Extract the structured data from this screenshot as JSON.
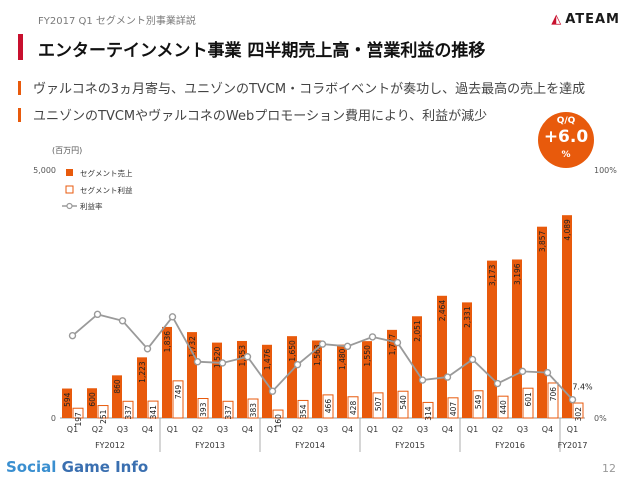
{
  "header": {
    "section": "FY2017 Q1 セグメント別事業詳説",
    "title": "エンターテインメント事業 四半期売上高・営業利益の推移",
    "logo": "ATEAM"
  },
  "bullets": [
    "ヴァルコネの3ヵ月寄与、ユニゾンのTVCM・コラボイベントが奏功し、過去最高の売上を達成",
    "ユニゾンのTVCMやヴァルコネのWebプロモーション費用により、利益が減少"
  ],
  "qq_badge": {
    "label": "Q/Q",
    "value": "+6.0",
    "unit": "%"
  },
  "colors": {
    "sales": "#e85a0c",
    "profit_border": "#e85a0c",
    "rate": "#9a9a9a",
    "accent": "#c8102e"
  },
  "chart_data": {
    "type": "bar",
    "unit_label": "(百万円)",
    "ylim": [
      0,
      5000
    ],
    "y_ticks": [
      "5,000",
      "0"
    ],
    "y2lim": [
      0,
      100
    ],
    "y2_ticks": [
      "100%",
      "0%"
    ],
    "legend_position": "top-left",
    "categories": [
      "Q1",
      "Q2",
      "Q3",
      "Q4",
      "Q1",
      "Q2",
      "Q3",
      "Q4",
      "Q1",
      "Q2",
      "Q3",
      "Q4",
      "Q1",
      "Q2",
      "Q3",
      "Q4",
      "Q1",
      "Q2",
      "Q3",
      "Q4",
      "Q1"
    ],
    "fiscal_years": [
      {
        "label": "FY2012",
        "start": 0,
        "count": 4
      },
      {
        "label": "FY2013",
        "start": 4,
        "count": 4
      },
      {
        "label": "FY2014",
        "start": 8,
        "count": 4
      },
      {
        "label": "FY2015",
        "start": 12,
        "count": 4
      },
      {
        "label": "FY2016",
        "start": 16,
        "count": 4
      },
      {
        "label": "FY2017",
        "start": 20,
        "count": 1
      }
    ],
    "series": [
      {
        "name": "セグメント売上",
        "type": "bar",
        "values": [
          594,
          600,
          860,
          1223,
          1836,
          1732,
          1520,
          1553,
          1476,
          1650,
          1563,
          1480,
          1550,
          1777,
          2051,
          2464,
          2331,
          3173,
          3196,
          3857,
          4089
        ],
        "labels": [
          "594",
          "600",
          "860",
          "1,223",
          "1,836",
          "1,732",
          "1,520",
          "1,553",
          "1,476",
          "1,650",
          "1,563",
          "1,480",
          "1,550",
          "1,777",
          "2,051",
          "2,464",
          "2,331",
          "3,173",
          "3,196",
          "3,857",
          "4,089"
        ]
      },
      {
        "name": "セグメント利益",
        "type": "bar",
        "values": [
          197,
          251,
          337,
          341,
          749,
          393,
          337,
          383,
          160,
          354,
          466,
          428,
          507,
          540,
          314,
          407,
          549,
          440,
          601,
          706,
          302
        ],
        "labels": [
          "197",
          "251",
          "337",
          "341",
          "749",
          "393",
          "337",
          "383",
          "160",
          "354",
          "466",
          "428",
          "507",
          "540",
          "314",
          "407",
          "549",
          "440",
          "601",
          "706",
          "302"
        ]
      },
      {
        "name": "利益率",
        "type": "line",
        "axis": "right",
        "values": [
          33.2,
          41.8,
          39.2,
          27.9,
          40.8,
          22.7,
          22.2,
          24.7,
          10.8,
          21.5,
          29.8,
          28.9,
          32.7,
          30.4,
          15.3,
          16.5,
          23.6,
          13.9,
          18.8,
          18.3,
          7.4
        ]
      }
    ],
    "annotation": "7.4%"
  },
  "footer": {
    "brand_a": "Social",
    "brand_b": "Game Info",
    "page": "12"
  }
}
